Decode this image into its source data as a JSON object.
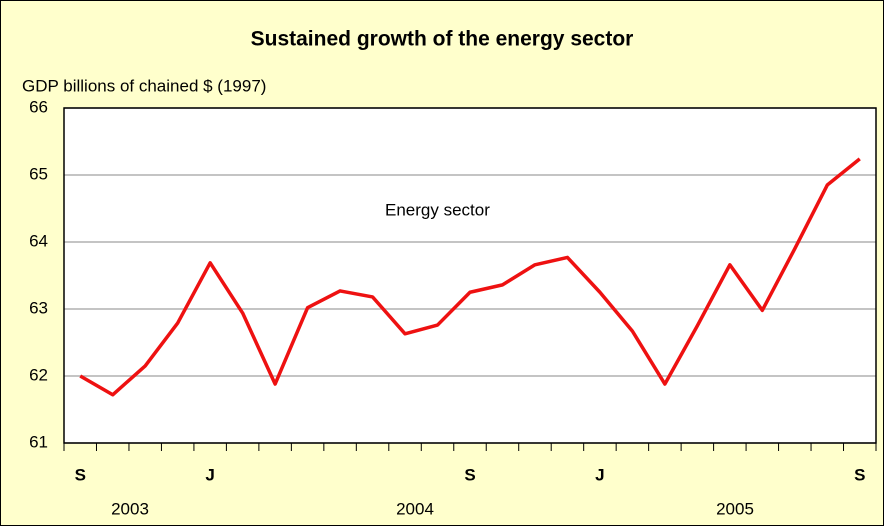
{
  "chart_data": {
    "type": "line",
    "title": "Sustained growth of the energy sector",
    "y_label": "GDP billions of chained $ (1997)",
    "annotation": "Energy sector",
    "categories": [
      "S",
      null,
      null,
      null,
      "J",
      null,
      null,
      null,
      null,
      null,
      null,
      null,
      "S",
      null,
      null,
      null,
      "J",
      null,
      null,
      null,
      null,
      null,
      null,
      null,
      "S"
    ],
    "year_labels": [
      "2003",
      "2004",
      "2005"
    ],
    "series": [
      {
        "name": "Energy sector",
        "color": "#ee1111",
        "values": [
          62.0,
          61.72,
          62.15,
          62.79,
          63.69,
          62.94,
          61.88,
          63.02,
          63.27,
          63.18,
          62.63,
          62.76,
          63.25,
          63.36,
          63.66,
          63.77,
          63.25,
          62.67,
          61.88,
          62.75,
          63.66,
          62.98,
          63.9,
          64.85,
          65.24
        ]
      }
    ],
    "ylim": [
      61,
      66
    ],
    "yticks": [
      61,
      62,
      63,
      64,
      65,
      66
    ],
    "grid": true
  }
}
